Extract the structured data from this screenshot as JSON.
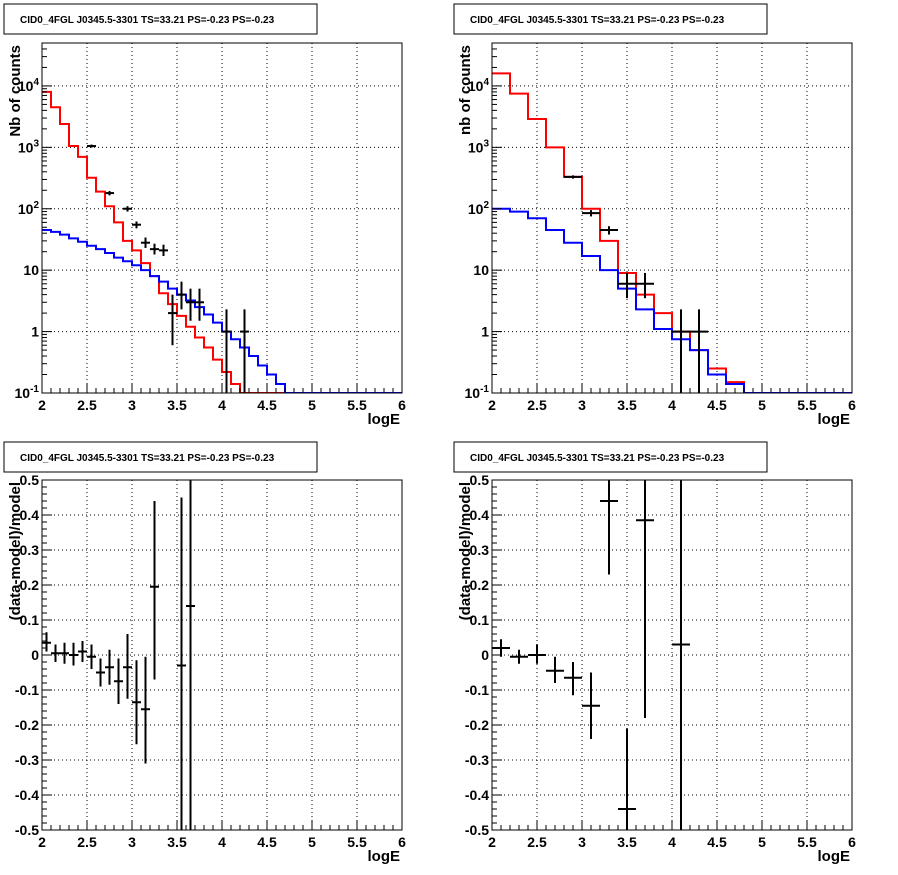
{
  "chart_data": [
    {
      "type": "histogram",
      "title": "CID0_4FGL J0345.5-3301 TS=33.21 PS=-0.23 PS=-0.23",
      "xlabel": "logE",
      "ylabel": "Nb of counts",
      "ylog": true,
      "xlim": [
        2,
        6
      ],
      "ylim": [
        0.1,
        50000
      ],
      "xticks": [
        "2",
        "2.5",
        "3",
        "3.5",
        "4",
        "4.5",
        "5",
        "5.5",
        "6"
      ],
      "yticks": [
        "10^-1",
        "1",
        "10",
        "10^2",
        "10^3",
        "10^4"
      ],
      "grid": true,
      "series": [
        {
          "color": "#ff0000",
          "bin_width": 0.1,
          "x_edges_start": 2.0,
          "values": [
            8000,
            4500,
            2400,
            1050,
            700,
            320,
            190,
            110,
            60,
            30,
            21,
            13,
            8,
            4.2,
            2.8,
            1.8,
            1.2,
            0.8,
            0.55,
            0.35,
            0.22,
            0.14,
            0.1,
            0.1,
            0.1,
            0.1,
            0.1,
            0.1,
            0.1,
            0.1,
            0.1,
            0.1,
            0.1,
            0.1,
            0.1,
            0.1,
            0.1,
            0.1,
            0.1,
            0.1
          ]
        },
        {
          "color": "#0000ff",
          "bin_width": 0.1,
          "x_edges_start": 2.0,
          "values": [
            45,
            42,
            38,
            33,
            29,
            25,
            22,
            19,
            16,
            14,
            12,
            10,
            8,
            6.5,
            5,
            4,
            3.2,
            2.5,
            1.9,
            1.4,
            1.0,
            0.75,
            0.55,
            0.4,
            0.28,
            0.2,
            0.14,
            0.1,
            0.1,
            0.1,
            0.1,
            0.1,
            0.1,
            0.1,
            0.1,
            0.1,
            0.1,
            0.1,
            0.1,
            0.1
          ]
        },
        {
          "color": "#000000",
          "type": "errorbars",
          "x_half_width": 0.05,
          "x": [
            2.55,
            2.75,
            2.95,
            3.05,
            3.15,
            3.25,
            3.35,
            3.45,
            3.55,
            3.65,
            3.75,
            4.05,
            4.25
          ],
          "y": [
            1050,
            180,
            100,
            55,
            28,
            22,
            21,
            2,
            4,
            3,
            3,
            1,
            1
          ],
          "ylo": [
            990,
            165,
            90,
            48,
            23,
            18,
            17,
            0.6,
            2.3,
            1.5,
            1.5,
            0.1,
            0.1
          ],
          "yhi": [
            1110,
            195,
            110,
            62,
            34,
            27,
            26,
            4,
            6.5,
            5,
            5,
            2.3,
            2.3
          ]
        }
      ]
    },
    {
      "type": "histogram",
      "title": "CID0_4FGL J0345.5-3301 TS=33.21 PS=-0.23 PS=-0.23",
      "xlabel": "logE",
      "ylabel": "nb of counts",
      "ylog": true,
      "xlim": [
        2,
        6
      ],
      "ylim": [
        0.1,
        50000
      ],
      "xticks": [
        "2",
        "2.5",
        "3",
        "3.5",
        "4",
        "4.5",
        "5",
        "5.5",
        "6"
      ],
      "yticks": [
        "10^-1",
        "1",
        "10",
        "10^2",
        "10^3",
        "10^4"
      ],
      "grid": true,
      "series": [
        {
          "color": "#ff0000",
          "bin_width": 0.2,
          "x_edges_start": 2.0,
          "values": [
            16000,
            7500,
            2900,
            1000,
            330,
            100,
            30,
            9,
            4,
            2,
            1,
            0.5,
            0.25,
            0.15,
            0.1,
            0.1,
            0.1,
            0.1,
            0.1,
            0.1
          ]
        },
        {
          "color": "#0000ff",
          "bin_width": 0.2,
          "x_edges_start": 2.0,
          "values": [
            100,
            90,
            70,
            45,
            28,
            17,
            10,
            5,
            2.3,
            1.1,
            0.75,
            0.5,
            0.2,
            0.14,
            0.1,
            0.1,
            0.1,
            0.1,
            0.1,
            0.1
          ]
        },
        {
          "color": "#000000",
          "type": "errorbars",
          "x_half_width": 0.1,
          "x": [
            2.9,
            3.1,
            3.3,
            3.5,
            3.7,
            4.1,
            4.3
          ],
          "y": [
            330,
            85,
            45,
            6,
            6,
            1,
            1
          ],
          "ylo": [
            310,
            75,
            38,
            3.5,
            3.5,
            0.1,
            0.1
          ],
          "yhi": [
            350,
            95,
            52,
            9,
            9,
            2.3,
            2.3
          ]
        }
      ]
    },
    {
      "type": "errorbars",
      "title": "CID0_4FGL J0345.5-3301 TS=33.21 PS=-0.23 PS=-0.23",
      "xlabel": "logE",
      "ylabel": "(data-model)/model",
      "xlim": [
        2,
        6
      ],
      "ylim": [
        -0.5,
        0.5
      ],
      "xticks": [
        "2",
        "2.5",
        "3",
        "3.5",
        "4",
        "4.5",
        "5",
        "5.5",
        "6"
      ],
      "yticks": [
        "-0.5",
        "-0.4",
        "-0.3",
        "-0.2",
        "-0.1",
        "0",
        "0.1",
        "0.2",
        "0.3",
        "0.4",
        "0.5"
      ],
      "grid": true,
      "series": [
        {
          "color": "#000000",
          "x_half_width": 0.05,
          "x": [
            2.05,
            2.15,
            2.25,
            2.35,
            2.45,
            2.55,
            2.65,
            2.75,
            2.85,
            2.95,
            3.05,
            3.15,
            3.25,
            3.55,
            3.65
          ],
          "y": [
            0.035,
            0.005,
            0.005,
            0.0,
            0.01,
            -0.005,
            -0.05,
            -0.035,
            -0.075,
            -0.035,
            -0.135,
            -0.155,
            0.195,
            -0.03,
            0.14
          ],
          "ylo": [
            0.01,
            -0.02,
            -0.025,
            -0.03,
            -0.02,
            -0.04,
            -0.09,
            -0.085,
            -0.14,
            -0.125,
            -0.255,
            -0.31,
            -0.07,
            -0.5,
            -0.5
          ],
          "yhi": [
            0.065,
            0.03,
            0.035,
            0.035,
            0.04,
            0.03,
            -0.01,
            0.015,
            -0.01,
            0.06,
            -0.015,
            -0.005,
            0.44,
            0.45,
            0.5
          ]
        }
      ]
    },
    {
      "type": "errorbars",
      "title": "CID0_4FGL J0345.5-3301 TS=33.21 PS=-0.23 PS=-0.23",
      "xlabel": "logE",
      "ylabel": "(data-model)/model",
      "xlim": [
        2,
        6
      ],
      "ylim": [
        -0.5,
        0.5
      ],
      "xticks": [
        "2",
        "2.5",
        "3",
        "3.5",
        "4",
        "4.5",
        "5",
        "5.5",
        "6"
      ],
      "yticks": [
        "-0.5",
        "-0.4",
        "-0.3",
        "-0.2",
        "-0.1",
        "0",
        "0.1",
        "0.2",
        "0.3",
        "0.4",
        "0.5"
      ],
      "grid": true,
      "series": [
        {
          "color": "#000000",
          "x_half_width": 0.1,
          "x": [
            2.1,
            2.3,
            2.5,
            2.7,
            2.9,
            3.1,
            3.3,
            3.5,
            3.7,
            4.1
          ],
          "y": [
            0.02,
            -0.005,
            0.0,
            -0.045,
            -0.065,
            -0.145,
            0.44,
            -0.44,
            0.385,
            0.03
          ],
          "ylo": [
            -0.005,
            -0.025,
            -0.025,
            -0.08,
            -0.115,
            -0.24,
            0.23,
            -0.5,
            -0.18,
            -0.5
          ],
          "yhi": [
            0.045,
            0.015,
            0.03,
            -0.005,
            -0.02,
            -0.05,
            0.5,
            -0.21,
            0.5,
            0.5
          ]
        }
      ]
    }
  ]
}
